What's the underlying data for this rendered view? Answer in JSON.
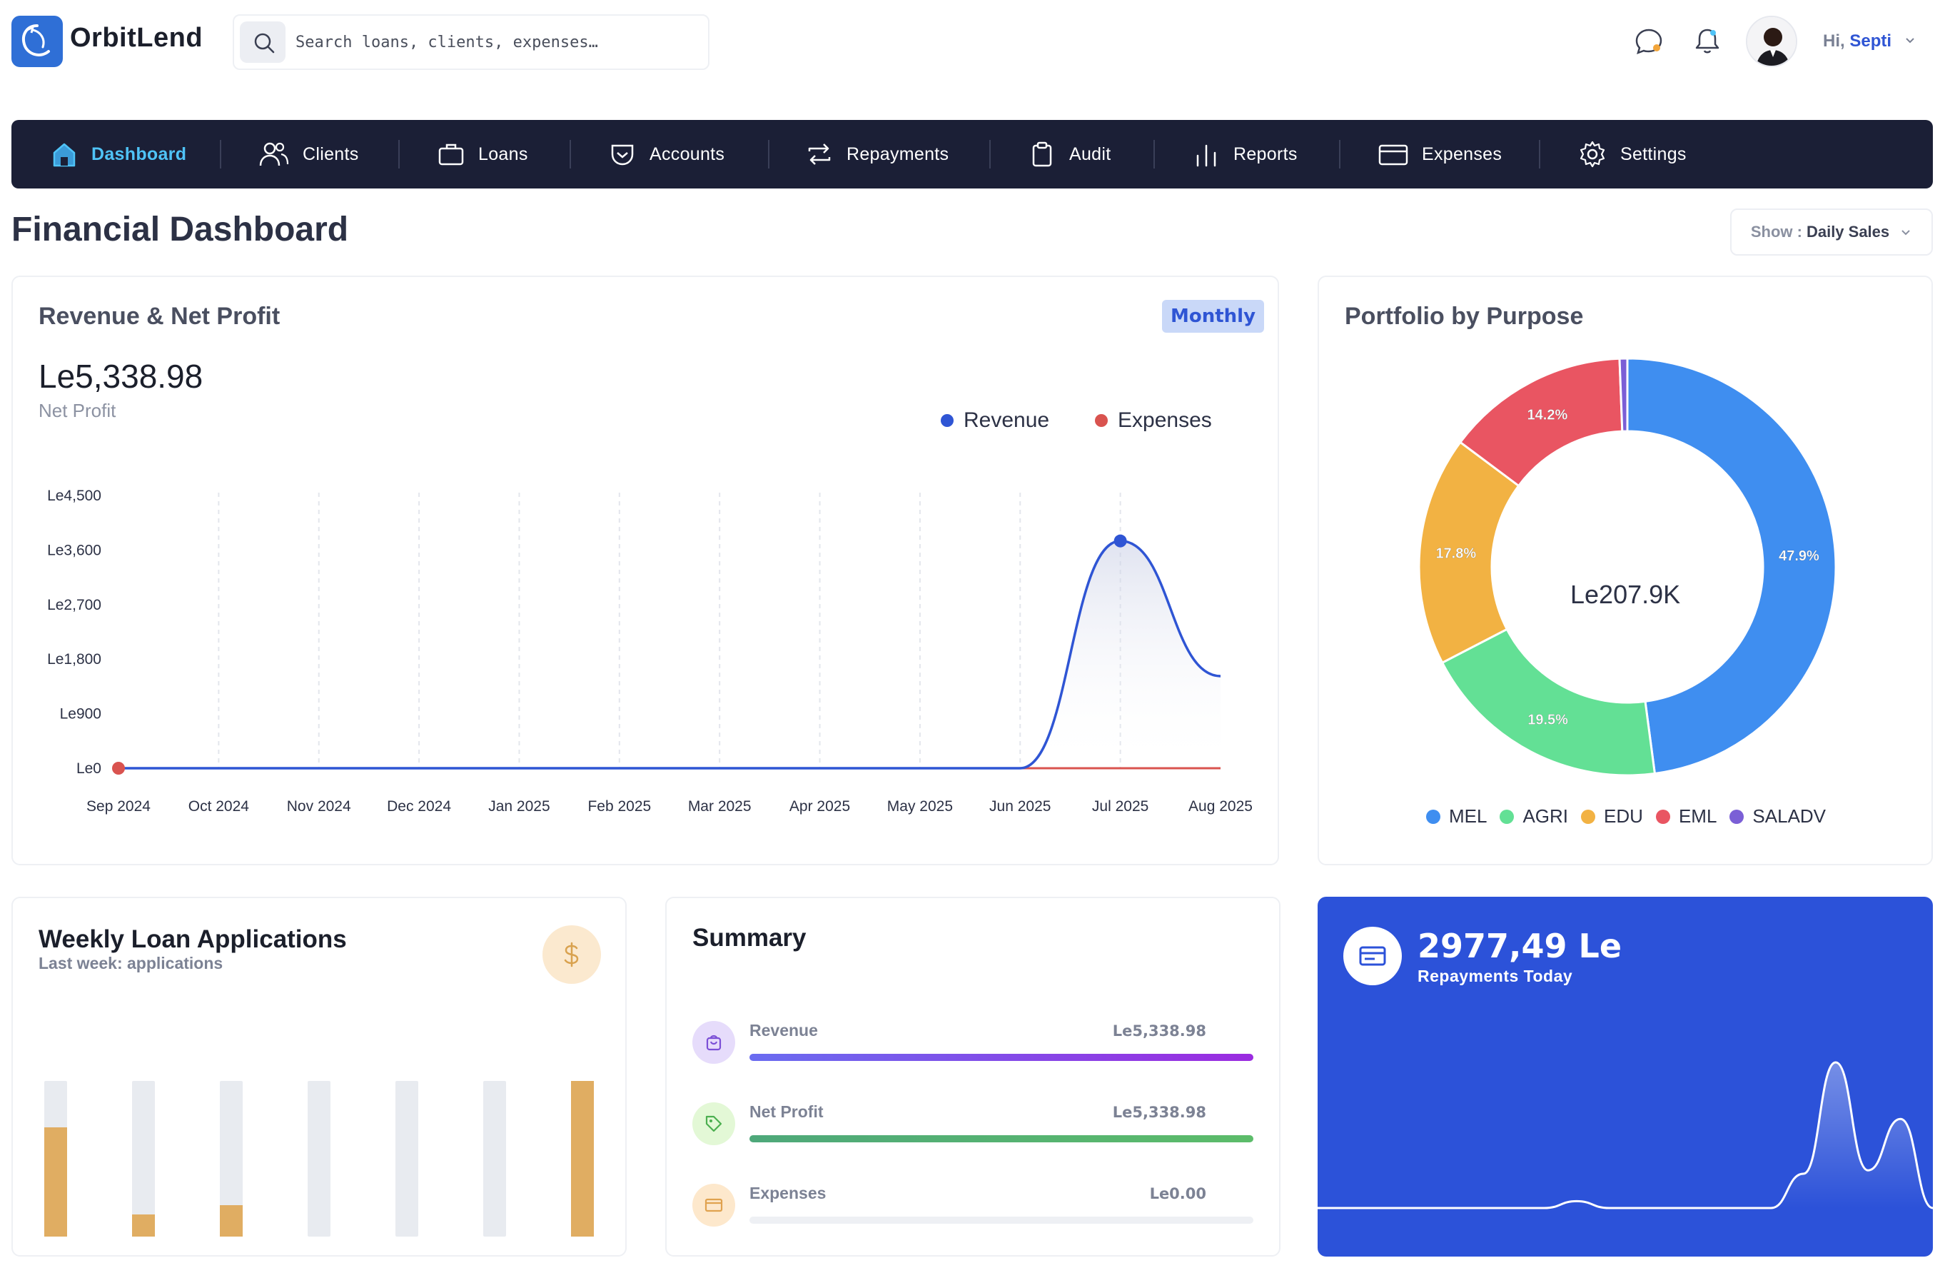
{
  "app": {
    "name": "OrbitLend"
  },
  "search": {
    "placeholder": "Search loans, clients, expenses…"
  },
  "user": {
    "greeting": "Hi,",
    "name": "Septi"
  },
  "nav": {
    "items": [
      {
        "label": "Dashboard",
        "icon": "home-icon",
        "active": true
      },
      {
        "label": "Clients",
        "icon": "users-icon"
      },
      {
        "label": "Loans",
        "icon": "briefcase-icon"
      },
      {
        "label": "Accounts",
        "icon": "wallet-icon"
      },
      {
        "label": "Repayments",
        "icon": "repeat-icon"
      },
      {
        "label": "Audit",
        "icon": "clipboard-icon"
      },
      {
        "label": "Reports",
        "icon": "bar-chart-icon"
      },
      {
        "label": "Expenses",
        "icon": "credit-card-icon"
      },
      {
        "label": "Settings",
        "icon": "gear-icon"
      }
    ]
  },
  "page": {
    "title": "Financial Dashboard"
  },
  "show_filter": {
    "label": "Show :",
    "value": "Daily Sales"
  },
  "revenue_card": {
    "title": "Revenue & Net Profit",
    "badge": "Monthly",
    "net_profit_value": "Le5,338.98",
    "net_profit_label": "Net Profit"
  },
  "portfolio_card": {
    "title": "Portfolio by Purpose",
    "center_total": "Le207.9K"
  },
  "weekly_card": {
    "title": "Weekly Loan Applications",
    "subtitle": "Last week: applications",
    "icon": "dollar-icon"
  },
  "summary_card": {
    "title": "Summary",
    "rows": [
      {
        "label": "Revenue",
        "value": "Le5,338.98",
        "fill": 1.0,
        "icon": "shopping-bag-icon"
      },
      {
        "label": "Net Profit",
        "value": "Le5,338.98",
        "fill": 1.0,
        "icon": "tag-icon"
      },
      {
        "label": "Expenses",
        "value": "Le0.00",
        "fill": 0.0,
        "icon": "credit-card-icon"
      }
    ]
  },
  "repayments_card": {
    "value": "2977,49 Le",
    "label": "Repayments Today",
    "icon": "credit-card-icon"
  },
  "colors": {
    "nav_bg": "#1b1f36",
    "nav_active": "#4fc3f7",
    "accent_blue": "#2f55d4",
    "revenue": "#2f55d4",
    "expenses": "#d9534f",
    "repayments_bg": "#2c52d9"
  },
  "chart_data": [
    {
      "type": "line",
      "x": [
        "Sep 2024",
        "Oct 2024",
        "Nov 2024",
        "Dec 2024",
        "Jan 2025",
        "Feb 2025",
        "Mar 2025",
        "Apr 2025",
        "May 2025",
        "Jun 2025",
        "Jul 2025",
        "Aug 2025"
      ],
      "y_ticks": [
        "Le0",
        "Le900",
        "Le1,800",
        "Le2,700",
        "Le3,600",
        "Le4,500"
      ],
      "ylim": [
        0,
        4500
      ],
      "series": [
        {
          "name": "Revenue",
          "color": "#2f55d4",
          "values": [
            0,
            0,
            0,
            0,
            0,
            0,
            0,
            0,
            0,
            0,
            3750,
            1520
          ]
        },
        {
          "name": "Expenses",
          "color": "#d9534f",
          "values": [
            0,
            0,
            0,
            0,
            0,
            0,
            0,
            0,
            0,
            0,
            0,
            0
          ]
        }
      ],
      "legend": "top-right",
      "grid": "vertical-dashed"
    },
    {
      "type": "pie",
      "style": "donut",
      "categories": [
        "MEL",
        "AGRI",
        "EDU",
        "EML",
        "SALADV"
      ],
      "values": [
        47.9,
        19.5,
        17.8,
        14.2,
        0.6
      ],
      "labels": [
        "47.9%",
        "19.5%",
        "17.8%",
        "14.2%",
        ""
      ],
      "colors": [
        "#3f8ef0",
        "#63e095",
        "#f2b243",
        "#e95562",
        "#7b5fd6"
      ],
      "legend": "bottom"
    },
    {
      "type": "bar",
      "categories": [
        "1",
        "2",
        "3",
        "4",
        "5",
        "6",
        "7"
      ],
      "values": [
        0.7,
        0.14,
        0.2,
        0,
        0,
        0,
        1.0
      ],
      "color": "#e0ad62",
      "ylim": [
        0,
        1
      ]
    },
    {
      "type": "area",
      "series": [
        {
          "name": "Repayments",
          "values": [
            0,
            0,
            0,
            0,
            0,
            0,
            0,
            0,
            0.04,
            0,
            0,
            0,
            0,
            0,
            0,
            0.2,
            0.85,
            0.22,
            0.52,
            0
          ]
        }
      ],
      "color": "#ffffff"
    }
  ]
}
